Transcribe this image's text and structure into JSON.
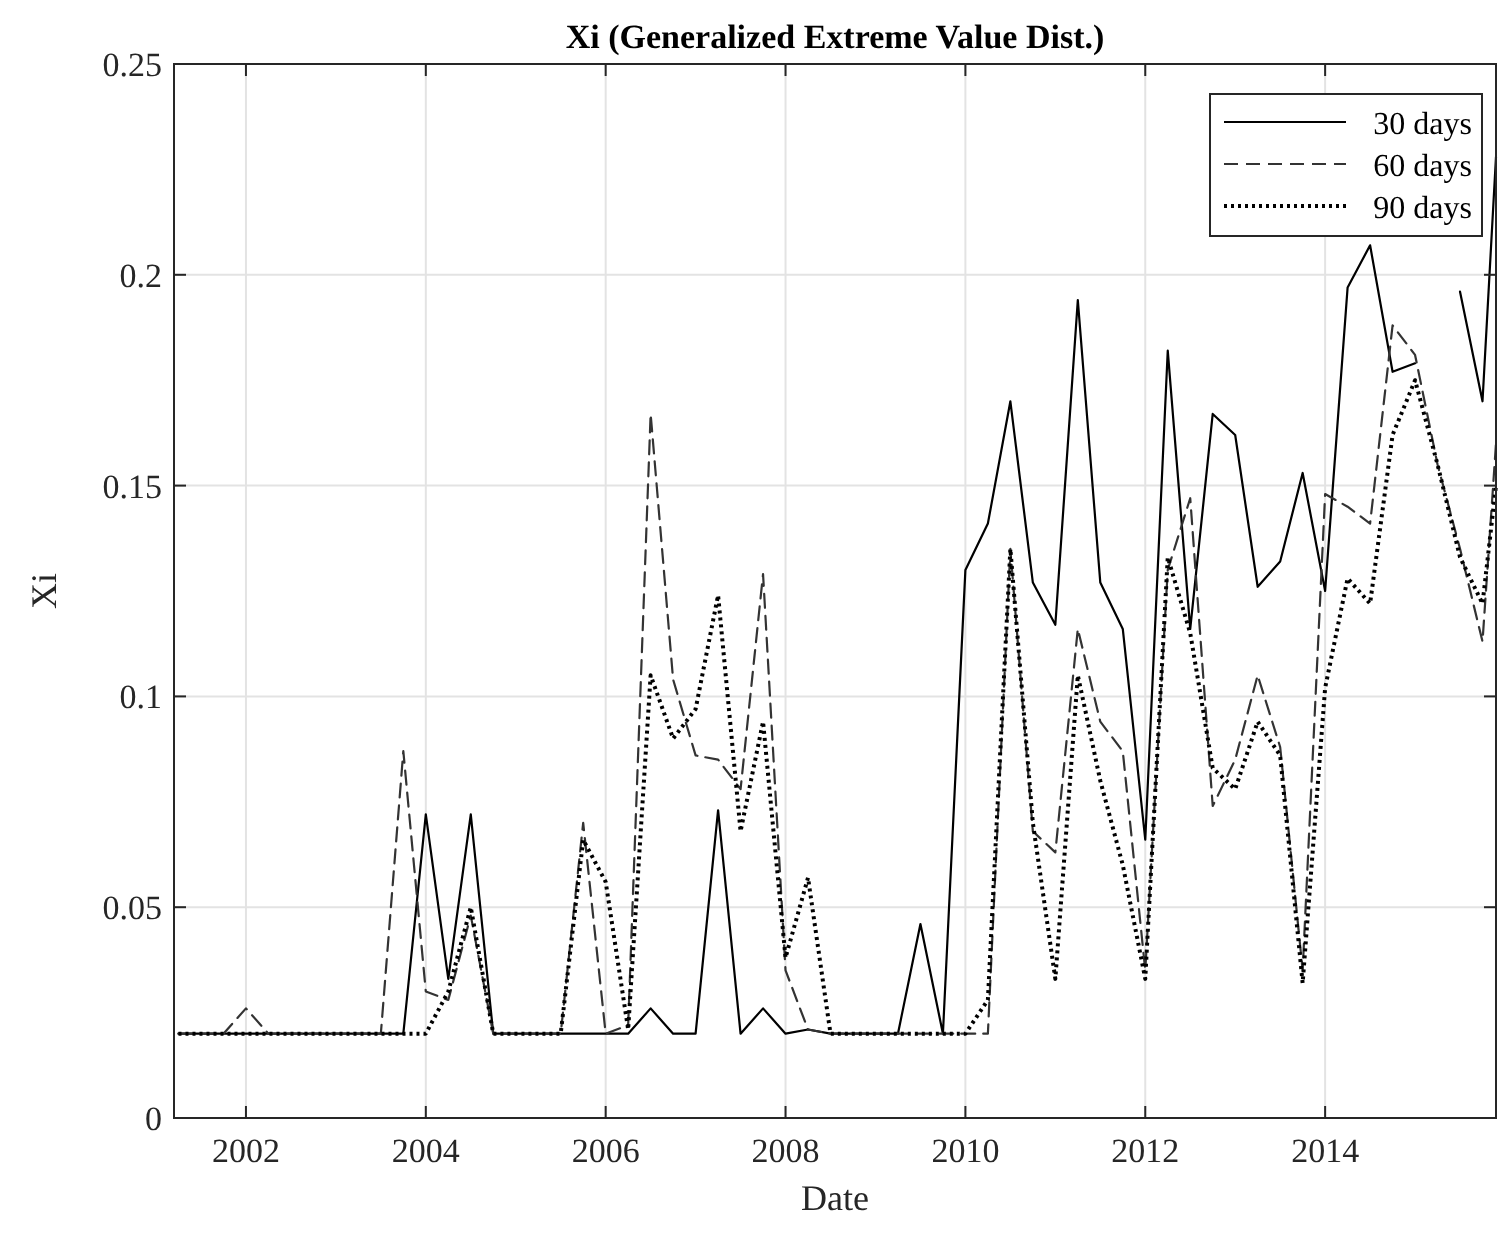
{
  "chart_data": {
    "type": "line",
    "title": "Xi (Generalized Extreme Value Dist.)",
    "xlabel": "Date",
    "ylabel": "Xi",
    "x": [
      2001.25,
      2001.5,
      2001.75,
      2002,
      2002.25,
      2002.5,
      2002.75,
      2003,
      2003.25,
      2003.5,
      2003.75,
      2004,
      2004.25,
      2004.5,
      2004.75,
      2005,
      2005.25,
      2005.5,
      2005.75,
      2006,
      2006.25,
      2006.5,
      2006.75,
      2007,
      2007.25,
      2007.5,
      2007.75,
      2008,
      2008.25,
      2008.5,
      2008.75,
      2009,
      2009.25,
      2009.5,
      2009.75,
      2010,
      2010.25,
      2010.5,
      2010.75,
      2011,
      2011.25,
      2011.5,
      2011.75,
      2012,
      2012.25,
      2012.5,
      2012.75,
      2013,
      2013.25,
      2013.5,
      2013.75,
      2014,
      2014.25,
      2014.5,
      2014.75,
      2015,
      2015.25,
      2015.5,
      2015.75,
      2015.9
    ],
    "xlim": [
      2001.2,
      2015.9
    ],
    "xticks": [
      2002,
      2004,
      2006,
      2008,
      2010,
      2012,
      2014
    ],
    "ylim": [
      0,
      0.25
    ],
    "yticks": [
      0,
      0.05,
      0.1,
      0.15,
      0.2,
      0.25
    ],
    "grid": true,
    "legend": "top right",
    "series": [
      {
        "name": "30 days",
        "color": "#000000",
        "line_style": "solid",
        "values": [
          0.02,
          0.02,
          0.02,
          0.02,
          0.02,
          0.02,
          0.02,
          0.02,
          0.02,
          0.02,
          0.02,
          0.072,
          0.033,
          0.072,
          0.02,
          0.02,
          0.02,
          0.02,
          0.02,
          0.02,
          0.02,
          0.026,
          0.02,
          0.02,
          0.073,
          0.02,
          0.026,
          0.02,
          0.021,
          0.02,
          0.02,
          0.02,
          0.02,
          0.046,
          0.02,
          0.13,
          0.141,
          0.17,
          0.127,
          0.117,
          0.194,
          0.127,
          0.116,
          0.066,
          0.182,
          0.116,
          0.167,
          0.162,
          0.126,
          0.132,
          0.153,
          0.125,
          0.197,
          0.207,
          0.177,
          0.179,
          null,
          0.196,
          0.17,
          0.228
        ]
      },
      {
        "name": "60 days",
        "color": "#333333",
        "line_style": "dashed",
        "values": [
          0.02,
          0.02,
          0.02,
          0.026,
          0.02,
          0.02,
          0.02,
          0.02,
          0.02,
          0.02,
          0.087,
          0.03,
          0.028,
          0.048,
          0.02,
          0.02,
          0.02,
          0.02,
          0.07,
          0.02,
          0.022,
          0.167,
          0.104,
          0.086,
          0.085,
          0.078,
          0.129,
          0.035,
          0.021,
          0.02,
          0.02,
          0.02,
          0.02,
          0.02,
          0.02,
          0.02,
          0.02,
          0.135,
          0.068,
          0.063,
          0.116,
          0.094,
          0.087,
          0.035,
          0.13,
          0.147,
          0.074,
          0.085,
          0.105,
          0.088,
          0.035,
          0.148,
          0.145,
          0.141,
          0.188,
          0.181,
          0.155,
          0.135,
          0.113,
          0.16
        ]
      },
      {
        "name": "90 days",
        "color": "#000000",
        "line_style": "dotted",
        "values": [
          0.02,
          0.02,
          0.02,
          0.02,
          0.02,
          0.02,
          0.02,
          0.02,
          0.02,
          0.02,
          0.02,
          0.02,
          0.03,
          0.05,
          0.02,
          0.02,
          0.02,
          0.02,
          0.066,
          0.056,
          0.021,
          0.105,
          0.09,
          0.097,
          0.124,
          0.068,
          0.094,
          0.038,
          0.057,
          0.02,
          0.02,
          0.02,
          0.02,
          0.02,
          0.02,
          0.02,
          0.028,
          0.135,
          0.07,
          0.033,
          0.105,
          0.08,
          0.06,
          0.033,
          0.133,
          0.115,
          0.083,
          0.078,
          0.094,
          0.086,
          0.032,
          0.102,
          0.128,
          0.122,
          0.162,
          0.175,
          0.155,
          0.133,
          0.122,
          0.15
        ]
      }
    ]
  }
}
